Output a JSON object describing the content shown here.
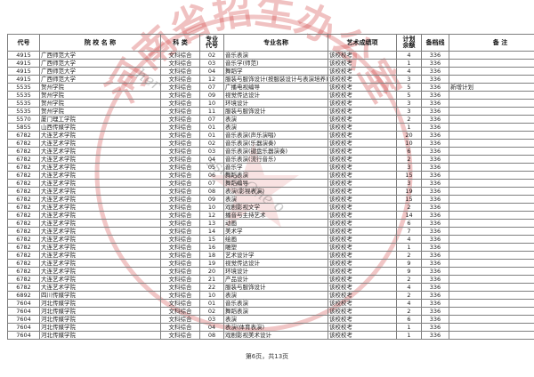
{
  "document": {
    "footer_page_text": "第6页，共13页"
  },
  "watermark": {
    "seal_text": "河南省招生办公室",
    "seal_color": "#cc3333",
    "gray_fragments": [
      "her",
      "ssion One o"
    ]
  },
  "table": {
    "columns": [
      "代号",
      "院 校 名 称",
      "科 类",
      "专业\n代号",
      "专业名称",
      "艺术成绩项",
      "计划\n余额",
      "备档线",
      "备 注"
    ],
    "rows": [
      [
        "4915",
        "广西师范大学",
        "文科综合",
        "02",
        "音乐表演",
        "该校校考",
        "4",
        "336",
        ""
      ],
      [
        "4915",
        "广西师范大学",
        "文科综合",
        "03",
        "音乐学(师范)",
        "该校校考",
        "1",
        "336",
        ""
      ],
      [
        "4915",
        "广西师范大学",
        "文科综合",
        "04",
        "舞蹈学",
        "该校校考",
        "4",
        "336",
        ""
      ],
      [
        "4915",
        "广西师范大学",
        "文科综合",
        "12",
        "服装与服饰设计(按服装设计与表演培养)",
        "该校校考",
        "3",
        "336",
        ""
      ],
      [
        "5535",
        "贺州学院",
        "文科综合",
        "07",
        "广播电视编导",
        "该校校考",
        "5",
        "336",
        "新增计划"
      ],
      [
        "5535",
        "贺州学院",
        "文科综合",
        "09",
        "视觉传达设计",
        "该校校考",
        "5",
        "336",
        ""
      ],
      [
        "5535",
        "贺州学院",
        "文科综合",
        "10",
        "环境设计",
        "该校校考",
        "3",
        "336",
        ""
      ],
      [
        "5535",
        "贺州学院",
        "文科综合",
        "11",
        "服装与服饰设计",
        "该校校考",
        "3",
        "336",
        ""
      ],
      [
        "5570",
        "厦门理工学院",
        "文科综合",
        "07",
        "表演",
        "该校校考",
        "2",
        "336",
        ""
      ],
      [
        "5855",
        "山西传媒学院",
        "文科综合",
        "01",
        "表演",
        "该校校考",
        "1",
        "336",
        ""
      ],
      [
        "6782",
        "大连艺术学院",
        "文科综合",
        "01",
        "音乐表演(声乐演唱)",
        "该校校考",
        "20",
        "336",
        ""
      ],
      [
        "6782",
        "大连艺术学院",
        "文科综合",
        "02",
        "音乐表演(乐器演奏)",
        "该校校考",
        "10",
        "336",
        ""
      ],
      [
        "6782",
        "大连艺术学院",
        "文科综合",
        "03",
        "音乐表演(键盘乐器演奏)",
        "该校校考",
        "6",
        "336",
        ""
      ],
      [
        "6782",
        "大连艺术学院",
        "文科综合",
        "04",
        "音乐表演(流行音乐)",
        "该校校考",
        "2",
        "336",
        ""
      ],
      [
        "6782",
        "大连艺术学院",
        "文科综合",
        "05",
        "音乐学",
        "该校校考",
        "3",
        "336",
        ""
      ],
      [
        "6782",
        "大连艺术学院",
        "文科综合",
        "06",
        "舞蹈表演",
        "该校校考",
        "15",
        "336",
        ""
      ],
      [
        "6782",
        "大连艺术学院",
        "文科综合",
        "07",
        "舞蹈编导",
        "该校校考",
        "3",
        "336",
        ""
      ],
      [
        "6782",
        "大连艺术学院",
        "文科综合",
        "08",
        "表演(影视表演)",
        "该校校考",
        "19",
        "336",
        ""
      ],
      [
        "6782",
        "大连艺术学院",
        "文科综合",
        "09",
        "表演",
        "该校校考",
        "15",
        "336",
        ""
      ],
      [
        "6782",
        "大连艺术学院",
        "文科综合",
        "10",
        "戏剧影视文学",
        "该校校考",
        "2",
        "336",
        ""
      ],
      [
        "6782",
        "大连艺术学院",
        "文科综合",
        "12",
        "播音与主持艺术",
        "该校校考",
        "14",
        "336",
        ""
      ],
      [
        "6782",
        "大连艺术学院",
        "文科综合",
        "13",
        "动画",
        "该校校考",
        "6",
        "336",
        ""
      ],
      [
        "6782",
        "大连艺术学院",
        "文科综合",
        "14",
        "美术学",
        "该校校考",
        "7",
        "336",
        ""
      ],
      [
        "6782",
        "大连艺术学院",
        "文科综合",
        "15",
        "绘画",
        "该校校考",
        "4",
        "336",
        ""
      ],
      [
        "6782",
        "大连艺术学院",
        "文科综合",
        "16",
        "雕塑",
        "该校校考",
        "1",
        "336",
        ""
      ],
      [
        "6782",
        "大连艺术学院",
        "文科综合",
        "18",
        "艺术设计学",
        "该校校考",
        "2",
        "336",
        ""
      ],
      [
        "6782",
        "大连艺术学院",
        "文科综合",
        "19",
        "视觉传达设计",
        "该校校考",
        "9",
        "336",
        ""
      ],
      [
        "6782",
        "大连艺术学院",
        "文科综合",
        "20",
        "环境设计",
        "该校校考",
        "9",
        "336",
        ""
      ],
      [
        "6782",
        "大连艺术学院",
        "文科综合",
        "21",
        "产品设计",
        "该校校考",
        "2",
        "336",
        ""
      ],
      [
        "6782",
        "大连艺术学院",
        "文科综合",
        "22",
        "服装与服饰设计",
        "该校校考",
        "4",
        "336",
        ""
      ],
      [
        "6892",
        "四川传媒学院",
        "文科综合",
        "10",
        "表演",
        "该校校考",
        "2",
        "336",
        ""
      ],
      [
        "7604",
        "河北传媒学院",
        "文科综合",
        "01",
        "音乐表演",
        "该校校考",
        "4",
        "336",
        ""
      ],
      [
        "7604",
        "河北传媒学院",
        "文科综合",
        "02",
        "舞蹈表演",
        "该校校考",
        "2",
        "336",
        ""
      ],
      [
        "7604",
        "河北传媒学院",
        "文科综合",
        "03",
        "表演",
        "该校校考",
        "6",
        "336",
        ""
      ],
      [
        "7604",
        "河北传媒学院",
        "文科综合",
        "04",
        "表演(体育表演)",
        "该校校考",
        "1",
        "336",
        ""
      ],
      [
        "7604",
        "河北传媒学院",
        "文科综合",
        "08",
        "戏剧影视美术设计",
        "该校校考",
        "1",
        "336",
        ""
      ]
    ]
  }
}
